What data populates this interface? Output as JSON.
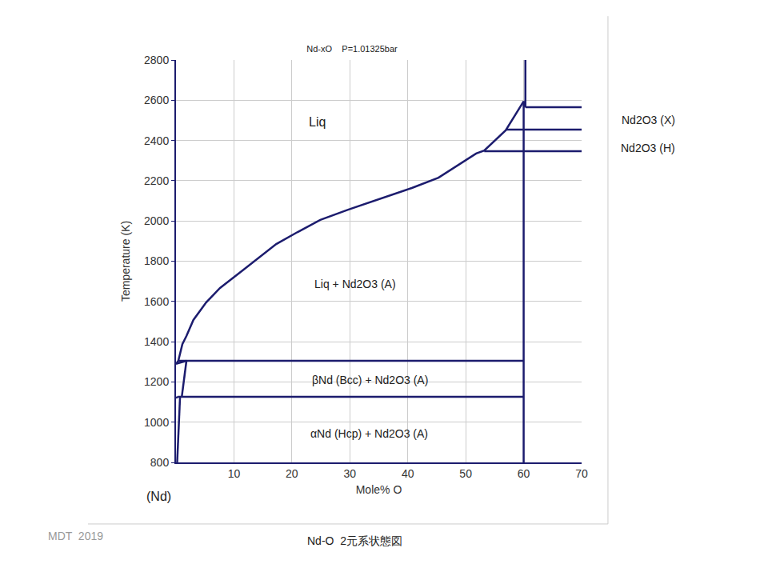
{
  "chart_data": {
    "type": "line",
    "title": "Nd-xO    P=1.01325bar",
    "xlabel": "Mole% O",
    "ylabel": "Temperature (K)",
    "xlim": [
      0,
      70
    ],
    "xticks": [
      10,
      20,
      30,
      40,
      50,
      60,
      70
    ],
    "ylim": [
      800,
      2800
    ],
    "yticks": [
      800,
      1000,
      1200,
      1400,
      1600,
      1800,
      2000,
      2200,
      2400,
      2600,
      2800
    ],
    "grid": true,
    "color": "#1c1c6e",
    "series": [
      {
        "x": [
          0.4,
          1.1,
          1.8,
          3,
          5.2,
          7.6,
          11.5,
          17.3,
          21,
          24.9,
          29.7,
          34.5,
          40.7,
          45.3,
          49,
          51.8,
          53.2,
          56.9,
          60
        ],
        "values": [
          1305,
          1388,
          1428,
          1508,
          1595,
          1667,
          1754,
          1885,
          1945,
          2005,
          2056,
          2104,
          2164,
          2215,
          2283,
          2335,
          2350,
          2450,
          2595
        ]
      },
      {
        "x": [
          0,
          1.8
        ],
        "values": [
          1290,
          1305
        ]
      },
      {
        "x": [
          0,
          0.4
        ],
        "values": [
          1290,
          1305
        ]
      },
      {
        "x": [
          0.4,
          60
        ],
        "values": [
          1305,
          1305
        ]
      },
      {
        "x": [
          1.8,
          1.0
        ],
        "values": [
          1305,
          1126
        ]
      },
      {
        "x": [
          0.3,
          60
        ],
        "values": [
          1126,
          1126
        ]
      },
      {
        "x": [
          0.7,
          0.2
        ],
        "values": [
          1126,
          800
        ]
      },
      {
        "x": [
          0,
          0.3
        ],
        "values": [
          1120,
          1126
        ]
      },
      {
        "x": [
          60,
          60
        ],
        "values": [
          800,
          2595
        ]
      },
      {
        "x": [
          60,
          60.3,
          60.3
        ],
        "values": [
          2595,
          2565,
          2800
        ]
      },
      {
        "x": [
          60.3,
          70
        ],
        "values": [
          2565,
          2565
        ]
      },
      {
        "x": [
          56.9,
          70
        ],
        "values": [
          2454,
          2454
        ]
      },
      {
        "x": [
          53.2,
          70
        ],
        "values": [
          2347,
          2347
        ]
      }
    ],
    "annotations": [
      "Liq",
      "Liq + Nd2O3 (A)",
      "βNd (Bcc) + Nd2O3 (A)",
      "αNd (Hcp) + Nd2O3 (A)",
      "Nd2O3 (X)",
      "Nd2O3 (H)",
      "(Nd)",
      "MDT  2019",
      "Nd-O  2元系状態図"
    ]
  }
}
